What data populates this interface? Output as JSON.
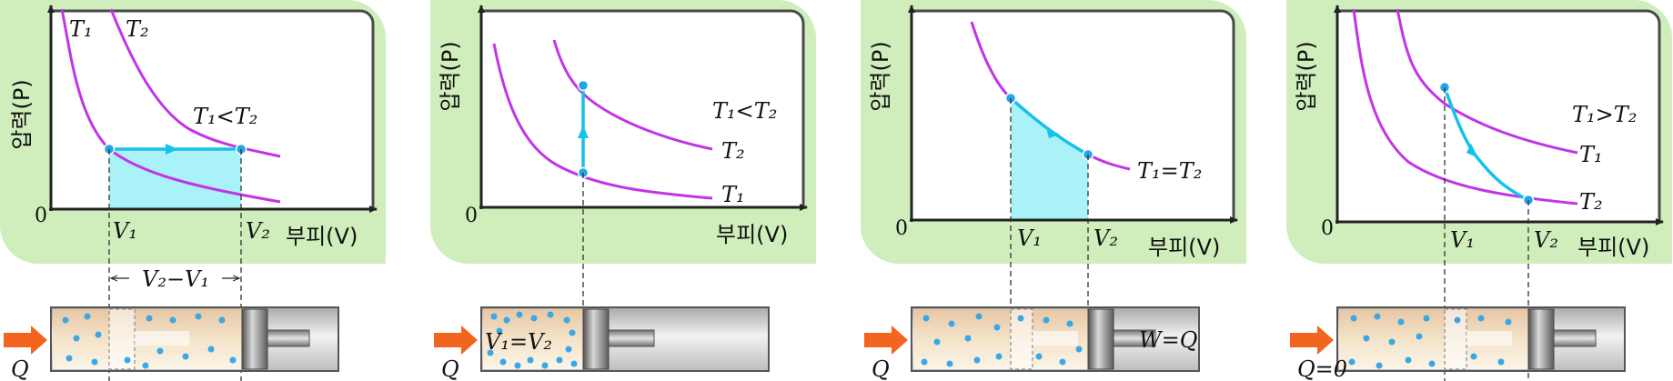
{
  "colors": {
    "panel_bg": "#cfeebc",
    "plot_bg": "#ffffff",
    "curve": "#c334e6",
    "process": "#17c1ea",
    "dot": "#21a6e8",
    "fill": "#a9f3f8",
    "arrow_q": "#f2651f",
    "axis": "#222222"
  },
  "common": {
    "y_axis_label": "압력(P)",
    "x_axis_label": "부피(V)",
    "origin": "0",
    "heat_label": "Q"
  },
  "panels": [
    {
      "name": "isobaric",
      "t1": "T₁",
      "t2": "T₂",
      "relation": "T₁<T₂",
      "v1": "V₁",
      "v2": "V₂",
      "width_label": "V₂−V₁",
      "heat": "Q"
    },
    {
      "name": "isochoric",
      "relation": "T₁<T₂",
      "t2": "T₂",
      "t1": "T₁",
      "volume_label": "V₁=V₂",
      "heat": "Q"
    },
    {
      "name": "isothermal",
      "relation": "T₁=T₂",
      "v1": "V₁",
      "v2": "V₂",
      "work_label": "W=Q",
      "heat": "Q"
    },
    {
      "name": "adiabatic",
      "relation": "T₁>T₂",
      "t1": "T₁",
      "t2": "T₂",
      "v1": "V₁",
      "v2": "V₂",
      "heat": "Q=0"
    }
  ]
}
